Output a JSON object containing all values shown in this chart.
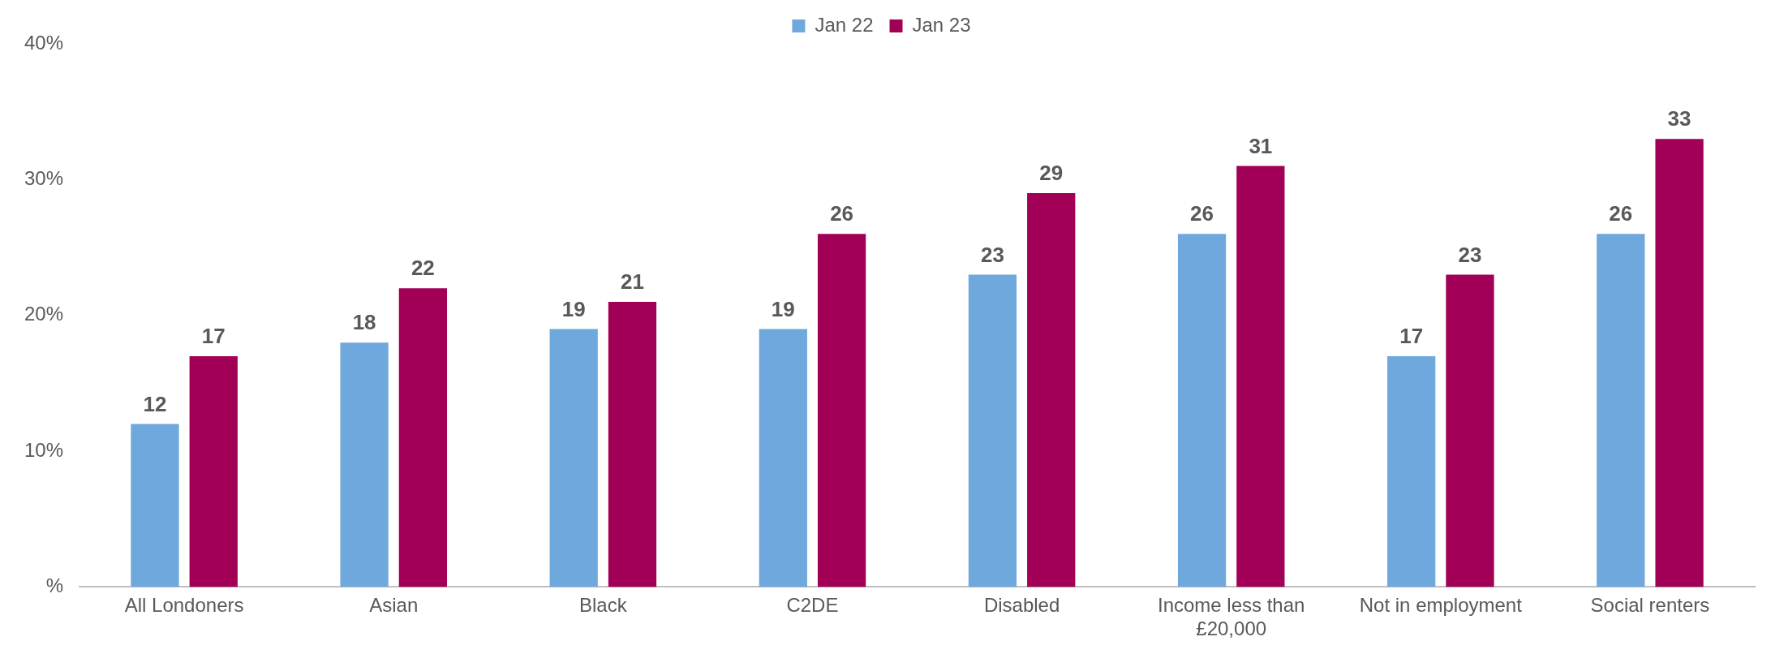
{
  "chart_data": {
    "type": "bar",
    "categories": [
      "All Londoners",
      "Asian",
      "Black",
      "C2DE",
      "Disabled",
      "Income less than £20,000",
      "Not in employment",
      "Social renters"
    ],
    "series": [
      {
        "name": "Jan 22",
        "color": "#6fa8dc",
        "values": [
          12,
          18,
          19,
          19,
          23,
          26,
          17,
          26
        ]
      },
      {
        "name": "Jan 23",
        "color": "#a10056",
        "values": [
          17,
          22,
          21,
          26,
          29,
          31,
          23,
          33
        ]
      }
    ],
    "ylim": [
      0,
      40
    ],
    "yticks": [
      {
        "value": 0,
        "label": "%"
      },
      {
        "value": 10,
        "label": "10%"
      },
      {
        "value": 20,
        "label": "20%"
      },
      {
        "value": 30,
        "label": "30%"
      },
      {
        "value": 40,
        "label": "40%"
      }
    ],
    "grid": false,
    "legend": "top",
    "data_labels": true
  }
}
